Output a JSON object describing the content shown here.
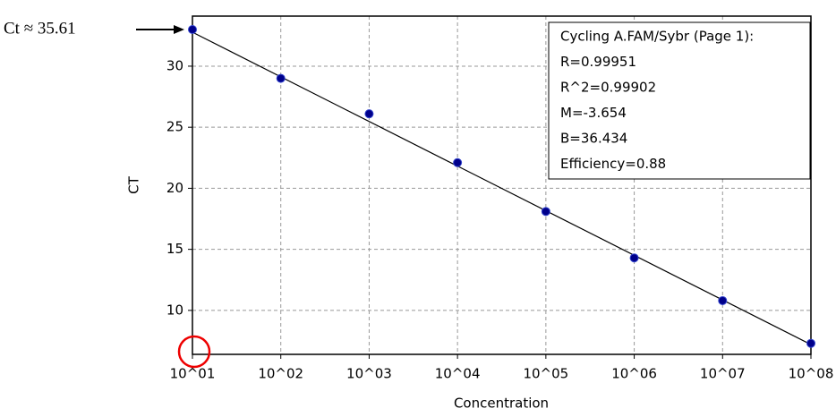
{
  "chart_data": {
    "type": "scatter",
    "x_label": "Concentration",
    "y_label": "CT",
    "log_x": true,
    "x": [
      10,
      100,
      1000,
      10000,
      100000,
      1000000,
      10000000,
      100000000
    ],
    "values": [
      33.0,
      29.0,
      26.1,
      22.1,
      18.1,
      14.3,
      10.8,
      7.3
    ],
    "color": "#00008b",
    "fit": {
      "slope": -3.654,
      "intercept": 36.434,
      "color": "#000000"
    },
    "xlim": [
      10,
      100000000
    ],
    "ylim": [
      6.4,
      34.1
    ],
    "xticks": [
      {
        "value": 10,
        "label": "10^01"
      },
      {
        "value": 100,
        "label": "10^02"
      },
      {
        "value": 1000,
        "label": "10^03"
      },
      {
        "value": 10000,
        "label": "10^04"
      },
      {
        "value": 100000,
        "label": "10^05"
      },
      {
        "value": 1000000,
        "label": "10^06"
      },
      {
        "value": 10000000,
        "label": "10^07"
      },
      {
        "value": 100000000,
        "label": "10^08"
      }
    ],
    "yticks": [
      10,
      15,
      20,
      25,
      30
    ],
    "grid": true,
    "stats_box": [
      "Cycling A.FAM/Sybr (Page 1):",
      "R=0.99951",
      "R^2=0.99902",
      "M=-3.654",
      "B=36.434",
      "Efficiency=0.88"
    ],
    "annotation": "Ct ≈ 35.61"
  }
}
